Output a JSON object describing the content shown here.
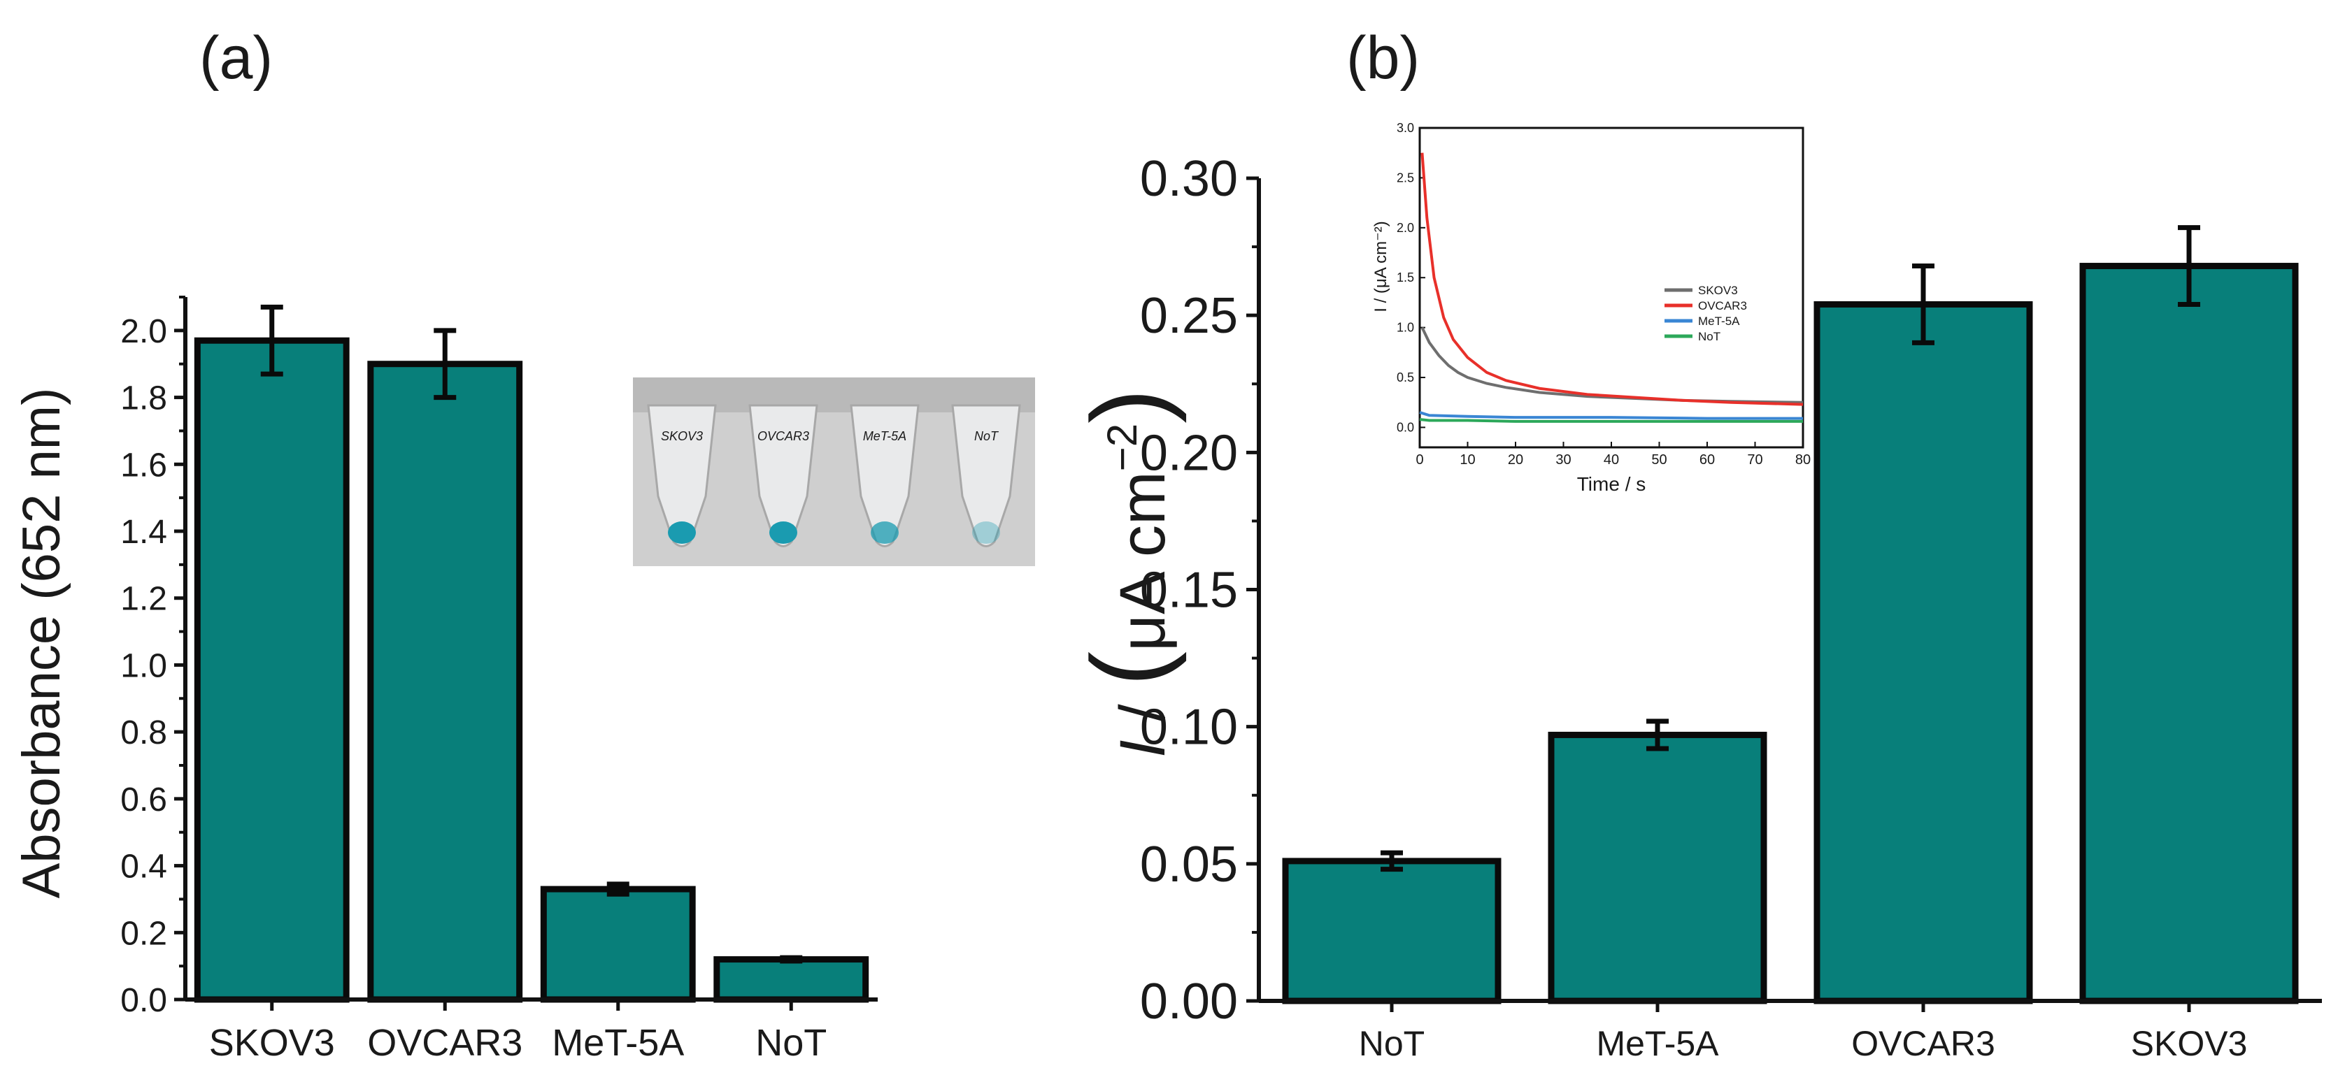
{
  "colors": {
    "bar_fill": "#087F7A",
    "bar_stroke": "#0a0a0a",
    "axis": "#111111",
    "inset_skov3": "#6e6e6e",
    "inset_ovcar3": "#e8302a",
    "inset_met5a": "#3a86d4",
    "inset_not": "#2ca85a",
    "tube_liquid": "#1a9bb0",
    "photo_bg": "#cfcfcf"
  },
  "chart_data": [
    {
      "panel": "(a)",
      "type": "bar",
      "title": "",
      "xlabel": "",
      "ylabel": "Absorbance (652 nm)",
      "ylim": [
        0.0,
        2.1
      ],
      "yticks": [
        "0.0",
        "0.2",
        "0.4",
        "0.6",
        "0.8",
        "1.0",
        "1.2",
        "1.4",
        "1.6",
        "1.8",
        "2.0"
      ],
      "categories": [
        "SKOV3",
        "OVCAR3",
        "MeT-5A",
        "NoT"
      ],
      "values": [
        1.97,
        1.9,
        0.33,
        0.12
      ],
      "errors": [
        0.1,
        0.1,
        0.015,
        0.005
      ],
      "inset_photo": {
        "description_tube_labels": [
          "SKOV3",
          "OVCAR3",
          "MeT-5A",
          "NoT"
        ],
        "tube_intensity": [
          1.0,
          1.0,
          0.75,
          0.35
        ]
      }
    },
    {
      "panel": "(b)",
      "type": "bar",
      "title": "",
      "xlabel": "",
      "ylabel_italic": "I",
      "ylabel_rest": " / ",
      "ylabel_unit": "μA cm",
      "ylabel_exp": "−2",
      "ylim": [
        0.0,
        0.3
      ],
      "yticks": [
        "0.00",
        "0.05",
        "0.10",
        "0.15",
        "0.20",
        "0.25",
        "0.30"
      ],
      "categories": [
        "NoT",
        "MeT-5A",
        "OVCAR3",
        "SKOV3"
      ],
      "values": [
        0.051,
        0.097,
        0.254,
        0.268
      ],
      "errors": [
        0.003,
        0.005,
        0.014,
        0.014
      ],
      "inset": {
        "type": "line",
        "xlabel": "Time / s",
        "ylabel": "I / (μA cm⁻²)",
        "xlim": [
          0,
          80
        ],
        "ylim": [
          -0.2,
          3.0
        ],
        "xticks": [
          "0",
          "10",
          "20",
          "30",
          "40",
          "50",
          "60",
          "70",
          "80"
        ],
        "yticks": [
          "0.0",
          "0.5",
          "1.0",
          "1.5",
          "2.0",
          "2.5",
          "3.0"
        ],
        "series": [
          {
            "name": "SKOV3",
            "color_key": "inset_skov3",
            "x": [
              0.5,
              2,
              4,
              6,
              8,
              10,
              14,
              18,
              25,
              35,
              45,
              55,
              65,
              80
            ],
            "y": [
              1.0,
              0.85,
              0.72,
              0.62,
              0.55,
              0.5,
              0.44,
              0.4,
              0.35,
              0.31,
              0.29,
              0.27,
              0.26,
              0.25
            ]
          },
          {
            "name": "OVCAR3",
            "color_key": "inset_ovcar3",
            "x": [
              0.5,
              1.5,
              3,
              5,
              7,
              10,
              14,
              18,
              25,
              35,
              45,
              55,
              65,
              80
            ],
            "y": [
              2.75,
              2.1,
              1.5,
              1.1,
              0.88,
              0.7,
              0.55,
              0.47,
              0.39,
              0.33,
              0.3,
              0.27,
              0.25,
              0.23
            ]
          },
          {
            "name": "MeT-5A",
            "color_key": "inset_met5a",
            "x": [
              0,
              2,
              10,
              20,
              40,
              60,
              80
            ],
            "y": [
              0.15,
              0.12,
              0.11,
              0.1,
              0.1,
              0.09,
              0.09
            ]
          },
          {
            "name": "NoT",
            "color_key": "inset_not",
            "x": [
              0,
              2,
              10,
              20,
              40,
              60,
              80
            ],
            "y": [
              0.08,
              0.07,
              0.07,
              0.06,
              0.06,
              0.06,
              0.06
            ]
          }
        ]
      }
    }
  ]
}
